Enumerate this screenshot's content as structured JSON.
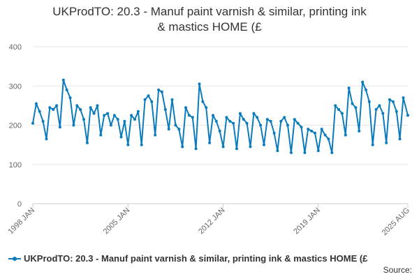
{
  "chart_data": {
    "type": "line",
    "title": "UKProdTO: 20.3 - Manuf paint varnish & similar, printing ink & mastics HOME (£",
    "title_lines": [
      "UKProdTO: 20.3 - Manuf paint varnish & similar, printing ink",
      "& mastics HOME (£"
    ],
    "xlabel": "",
    "ylabel": "",
    "ylim": [
      0,
      400
    ],
    "yticks": [
      0,
      100,
      200,
      300,
      400
    ],
    "xlim": [
      "1998-01",
      "2025-08"
    ],
    "xticks": [
      "1998 JAN",
      "2005 JAN",
      "2012 JAN",
      "2019 JAN",
      "2025 AUG"
    ],
    "grid": "horizontal",
    "legend": "bottom-left",
    "series_color": "#0a7bbd",
    "series": [
      {
        "name": "UKProdTO: 20.3 - Manuf paint varnish & similar, printing ink & mastics HOME (£",
        "x": [
          "1998-01",
          "1998-04",
          "1998-07",
          "1998-10",
          "1999-01",
          "1999-04",
          "1999-07",
          "1999-10",
          "2000-01",
          "2000-04",
          "2000-07",
          "2000-10",
          "2001-01",
          "2001-04",
          "2001-07",
          "2001-10",
          "2002-01",
          "2002-04",
          "2002-07",
          "2002-10",
          "2003-01",
          "2003-04",
          "2003-07",
          "2003-10",
          "2004-01",
          "2004-04",
          "2004-07",
          "2004-10",
          "2005-01",
          "2005-04",
          "2005-07",
          "2005-10",
          "2006-01",
          "2006-04",
          "2006-07",
          "2006-10",
          "2007-01",
          "2007-04",
          "2007-07",
          "2007-10",
          "2008-01",
          "2008-04",
          "2008-07",
          "2008-10",
          "2009-01",
          "2009-04",
          "2009-07",
          "2009-10",
          "2010-01",
          "2010-04",
          "2010-07",
          "2010-10",
          "2011-01",
          "2011-04",
          "2011-07",
          "2011-10",
          "2012-01",
          "2012-04",
          "2012-07",
          "2012-10",
          "2013-01",
          "2013-04",
          "2013-07",
          "2013-10",
          "2014-01",
          "2014-04",
          "2014-07",
          "2014-10",
          "2015-01",
          "2015-04",
          "2015-07",
          "2015-10",
          "2016-01",
          "2016-04",
          "2016-07",
          "2016-10",
          "2017-01",
          "2017-04",
          "2017-07",
          "2017-10",
          "2018-01",
          "2018-04",
          "2018-07",
          "2018-10",
          "2019-01",
          "2019-04",
          "2019-07",
          "2019-10",
          "2020-01",
          "2020-04",
          "2020-07",
          "2020-10",
          "2021-01",
          "2021-04",
          "2021-07",
          "2021-10",
          "2022-01",
          "2022-04",
          "2022-07",
          "2022-10",
          "2023-01",
          "2023-04",
          "2023-07",
          "2023-10",
          "2024-01",
          "2024-04",
          "2024-07",
          "2024-10",
          "2025-01",
          "2025-04",
          "2025-08"
        ],
        "values": [
          205,
          255,
          235,
          210,
          165,
          245,
          240,
          250,
          195,
          315,
          290,
          270,
          200,
          250,
          240,
          215,
          155,
          245,
          230,
          250,
          175,
          225,
          230,
          200,
          225,
          215,
          170,
          210,
          150,
          225,
          215,
          235,
          150,
          265,
          275,
          260,
          175,
          290,
          285,
          240,
          190,
          265,
          200,
          190,
          145,
          245,
          225,
          220,
          140,
          305,
          260,
          245,
          155,
          225,
          210,
          185,
          145,
          220,
          210,
          205,
          140,
          230,
          215,
          205,
          145,
          230,
          220,
          200,
          150,
          215,
          210,
          180,
          135,
          210,
          220,
          200,
          130,
          215,
          205,
          195,
          130,
          190,
          185,
          180,
          135,
          190,
          175,
          165,
          130,
          250,
          240,
          230,
          175,
          295,
          255,
          245,
          185,
          310,
          290,
          260,
          150,
          240,
          250,
          230,
          155,
          265,
          260,
          235,
          165,
          270,
          225
        ]
      }
    ],
    "source_label": "Source:"
  }
}
